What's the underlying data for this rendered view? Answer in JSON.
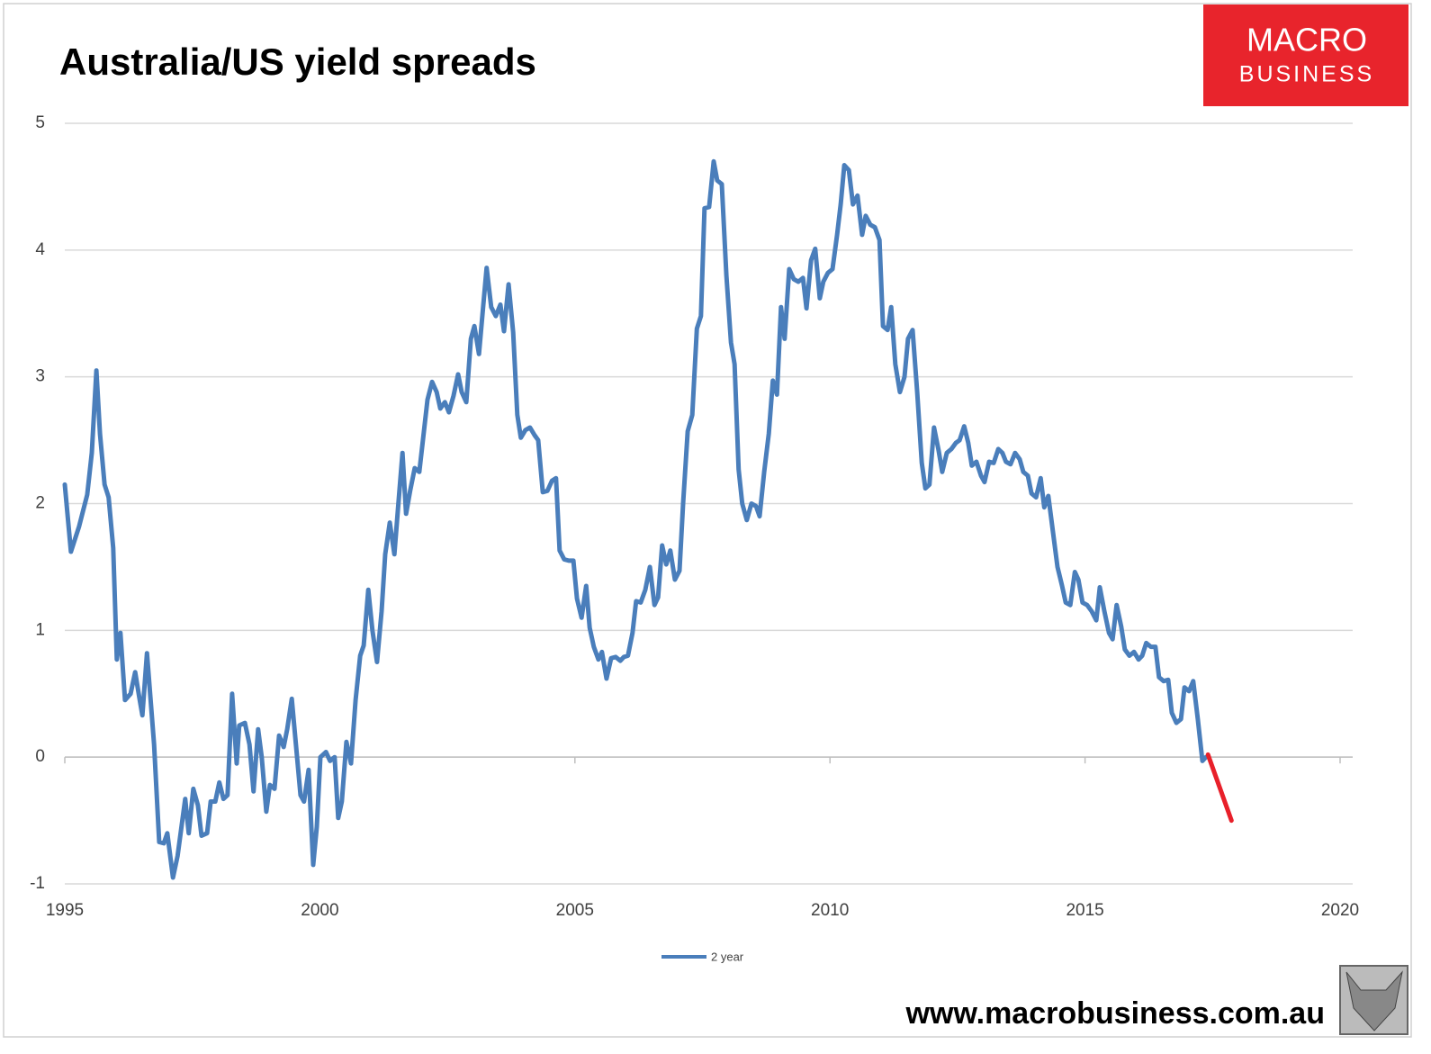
{
  "chart_data": {
    "type": "line",
    "title": "Australia/US yield spreads",
    "logo": {
      "line1": "MACRO",
      "line2": "BUSINESS"
    },
    "source": "www.macrobusiness.com.au",
    "xlim": [
      1995,
      2020
    ],
    "xticks": [
      1995,
      2000,
      2005,
      2010,
      2015,
      2020
    ],
    "ylim": [
      -1,
      5
    ],
    "yticks": [
      -1,
      0,
      1,
      2,
      3,
      4,
      5
    ],
    "grid": true,
    "legend": "bottom",
    "series": [
      {
        "name": "2 year",
        "color": "#4a7ebb",
        "x": [
          1995.0,
          1995.12,
          1995.28,
          1995.44,
          1995.53,
          1995.62,
          1995.69,
          1995.78,
          1995.86,
          1995.95,
          1996.02,
          1996.09,
          1996.18,
          1996.29,
          1996.38,
          1996.46,
          1996.52,
          1996.61,
          1996.75,
          1996.85,
          1996.94,
          1997.01,
          1997.12,
          1997.21,
          1997.36,
          1997.43,
          1997.52,
          1997.61,
          1997.68,
          1997.79,
          1997.86,
          1997.95,
          1998.03,
          1998.11,
          1998.19,
          1998.28,
          1998.37,
          1998.42,
          1998.53,
          1998.62,
          1998.7,
          1998.79,
          1998.86,
          1998.95,
          1999.02,
          1999.11,
          1999.2,
          1999.29,
          1999.36,
          1999.45,
          1999.53,
          1999.62,
          1999.69,
          1999.78,
          1999.87,
          1999.94,
          2000.01,
          2000.12,
          2000.2,
          2000.29,
          2000.36,
          2000.43,
          2000.52,
          2000.61,
          2000.7,
          2000.79,
          2000.86,
          2000.95,
          2001.03,
          2001.12,
          2001.21,
          2001.28,
          2001.37,
          2001.46,
          2001.53,
          2001.62,
          2001.69,
          2001.77,
          2001.86,
          2001.95,
          2002.02,
          2002.11,
          2002.2,
          2002.29,
          2002.36,
          2002.45,
          2002.53,
          2002.62,
          2002.71,
          2002.78,
          2002.87,
          2002.96,
          2003.03,
          2003.12,
          2003.2,
          2003.27,
          2003.36,
          2003.45,
          2003.54,
          2003.61,
          2003.7,
          2003.79,
          2003.87,
          2003.94,
          2004.03,
          2004.12,
          2004.21,
          2004.28,
          2004.37,
          2004.46,
          2004.55,
          2004.63,
          2004.7,
          2004.79,
          2004.88,
          2004.97,
          2005.04,
          2005.13,
          2005.22,
          2005.29,
          2005.37,
          2005.46,
          2005.53,
          2005.62,
          2005.71,
          2005.8,
          2005.89,
          2005.96,
          2006.04,
          2006.13,
          2006.2,
          2006.29,
          2006.38,
          2006.47,
          2006.56,
          2006.63,
          2006.71,
          2006.79,
          2006.87,
          2006.96,
          2007.05,
          2007.12,
          2007.21,
          2007.3,
          2007.39,
          2007.47,
          2007.54,
          2007.63,
          2007.72,
          2007.79,
          2007.88,
          2007.97,
          2008.06,
          2008.13,
          2008.21,
          2008.28,
          2008.37,
          2008.46,
          2008.55,
          2008.62,
          2008.71,
          2008.8,
          2008.88,
          2008.96,
          2009.04,
          2009.11,
          2009.2,
          2009.29,
          2009.38,
          2009.47,
          2009.54,
          2009.63,
          2009.71,
          2009.8,
          2009.87,
          2009.96,
          2010.05,
          2010.14,
          2010.21,
          2010.28,
          2010.37,
          2010.45,
          2010.54,
          2010.63,
          2010.7,
          2010.79,
          2010.88,
          2010.97,
          2011.04,
          2011.13,
          2011.2,
          2011.28,
          2011.37,
          2011.46,
          2011.53,
          2011.62,
          2011.71,
          2011.8,
          2011.87,
          2011.95,
          2012.04,
          2012.13,
          2012.2,
          2012.29,
          2012.38,
          2012.47,
          2012.54,
          2012.63,
          2012.71,
          2012.78,
          2012.87,
          2012.96,
          2013.03,
          2013.12,
          2013.21,
          2013.3,
          2013.38,
          2013.45,
          2013.54,
          2013.63,
          2013.72,
          2013.79,
          2013.88,
          2013.95,
          2014.04,
          2014.13,
          2014.2,
          2014.28,
          2014.37,
          2014.46,
          2014.55,
          2014.62,
          2014.71,
          2014.8,
          2014.87,
          2014.95,
          2015.04,
          2015.13,
          2015.22,
          2015.29,
          2015.38,
          2015.47,
          2015.54,
          2015.62,
          2015.71,
          2015.78,
          2015.87,
          2015.96,
          2016.05,
          2016.12,
          2016.2,
          2016.29,
          2016.38,
          2016.45,
          2016.54,
          2016.63,
          2016.7,
          2016.79,
          2016.88,
          2016.95,
          2017.04,
          2017.12,
          2017.21,
          2017.3,
          2017.37
        ],
        "values": [
          2.15,
          1.62,
          1.82,
          2.07,
          2.4,
          3.05,
          2.55,
          2.15,
          2.05,
          1.65,
          0.77,
          0.98,
          0.45,
          0.5,
          0.67,
          0.47,
          0.33,
          0.82,
          0.1,
          -0.67,
          -0.68,
          -0.6,
          -0.95,
          -0.78,
          -0.33,
          -0.6,
          -0.25,
          -0.38,
          -0.62,
          -0.6,
          -0.35,
          -0.35,
          -0.2,
          -0.33,
          -0.3,
          0.5,
          -0.05,
          0.25,
          0.27,
          0.1,
          -0.27,
          0.22,
          0.0,
          -0.43,
          -0.22,
          -0.25,
          0.17,
          0.08,
          0.22,
          0.46,
          0.1,
          -0.3,
          -0.35,
          -0.1,
          -0.85,
          -0.55,
          0.0,
          0.04,
          -0.03,
          0.0,
          -0.48,
          -0.35,
          0.12,
          -0.05,
          0.45,
          0.8,
          0.88,
          1.32,
          1.0,
          0.75,
          1.15,
          1.6,
          1.85,
          1.6,
          1.95,
          2.4,
          1.92,
          2.1,
          2.28,
          2.25,
          2.5,
          2.82,
          2.96,
          2.88,
          2.75,
          2.8,
          2.72,
          2.85,
          3.02,
          2.88,
          2.8,
          3.3,
          3.4,
          3.18,
          3.55,
          3.86,
          3.55,
          3.48,
          3.57,
          3.36,
          3.73,
          3.35,
          2.7,
          2.52,
          2.58,
          2.6,
          2.54,
          2.5,
          2.09,
          2.1,
          2.18,
          2.2,
          1.63,
          1.56,
          1.55,
          1.55,
          1.25,
          1.1,
          1.35,
          1.02,
          0.87,
          0.77,
          0.83,
          0.62,
          0.78,
          0.79,
          0.76,
          0.79,
          0.8,
          0.98,
          1.23,
          1.22,
          1.32,
          1.5,
          1.2,
          1.26,
          1.67,
          1.52,
          1.63,
          1.4,
          1.47,
          2.0,
          2.57,
          2.7,
          3.38,
          3.48,
          4.33,
          4.34,
          4.7,
          4.55,
          4.52,
          3.8,
          3.27,
          3.1,
          2.27,
          2.0,
          1.87,
          2.0,
          1.98,
          1.9,
          2.25,
          2.55,
          2.97,
          2.86,
          3.55,
          3.3,
          3.85,
          3.77,
          3.75,
          3.78,
          3.54,
          3.92,
          4.01,
          3.62,
          3.75,
          3.82,
          3.85,
          4.12,
          4.36,
          4.67,
          4.63,
          4.36,
          4.43,
          4.12,
          4.27,
          4.2,
          4.18,
          4.08,
          3.4,
          3.37,
          3.55,
          3.1,
          2.88,
          3.0,
          3.3,
          3.37,
          2.88,
          2.32,
          2.12,
          2.15,
          2.6,
          2.42,
          2.25,
          2.4,
          2.43,
          2.48,
          2.5,
          2.61,
          2.48,
          2.3,
          2.33,
          2.22,
          2.17,
          2.33,
          2.32,
          2.43,
          2.4,
          2.33,
          2.31,
          2.4,
          2.35,
          2.25,
          2.22,
          2.08,
          2.05,
          2.2,
          1.97,
          2.06,
          1.78,
          1.5,
          1.35,
          1.22,
          1.2,
          1.46,
          1.4,
          1.22,
          1.2,
          1.15,
          1.08,
          1.34,
          1.15,
          0.98,
          0.93,
          1.2,
          1.03,
          0.85,
          0.8,
          0.83,
          0.77,
          0.8,
          0.9,
          0.87,
          0.87,
          0.63,
          0.6,
          0.61,
          0.35,
          0.27,
          0.3,
          0.55,
          0.52,
          0.6,
          0.3,
          -0.03,
          0.0
        ]
      },
      {
        "color": "#e8202a",
        "x": [
          2017.41,
          2017.87
        ],
        "values": [
          0.02,
          -0.5
        ]
      }
    ]
  }
}
